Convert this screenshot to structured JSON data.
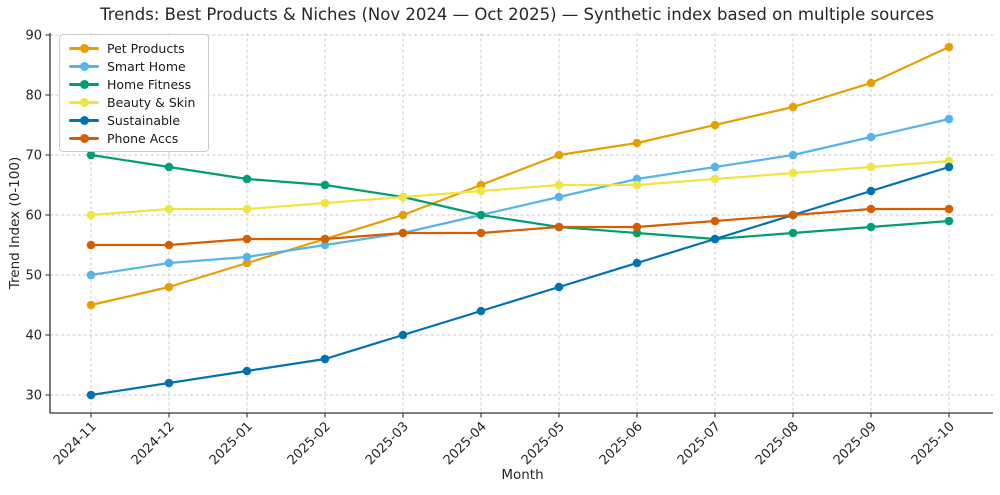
{
  "chart_data": {
    "type": "line",
    "title": "Trends: Best Products & Niches (Nov 2024 — Oct 2025) — Synthetic index based on multiple sources",
    "xlabel": "Month",
    "ylabel": "Trend Index (0-100)",
    "categories": [
      "2024-11",
      "2024-12",
      "2025-01",
      "2025-02",
      "2025-03",
      "2025-04",
      "2025-05",
      "2025-06",
      "2025-07",
      "2025-08",
      "2025-09",
      "2025-10"
    ],
    "series": [
      {
        "name": "Pet Products",
        "color": "#E69F00",
        "values": [
          45,
          48,
          52,
          56,
          60,
          65,
          70,
          72,
          75,
          78,
          82,
          88
        ]
      },
      {
        "name": "Smart Home",
        "color": "#56B4E9",
        "values": [
          50,
          52,
          53,
          55,
          57,
          60,
          63,
          66,
          68,
          70,
          73,
          76
        ]
      },
      {
        "name": "Home Fitness",
        "color": "#009E73",
        "values": [
          70,
          68,
          66,
          65,
          63,
          60,
          58,
          57,
          56,
          57,
          58,
          59
        ]
      },
      {
        "name": "Beauty & Skin",
        "color": "#F0E442",
        "values": [
          60,
          61,
          61,
          62,
          63,
          64,
          65,
          65,
          66,
          67,
          68,
          69
        ]
      },
      {
        "name": "Sustainable",
        "color": "#0072B2",
        "values": [
          30,
          32,
          34,
          36,
          40,
          44,
          48,
          52,
          56,
          60,
          64,
          68
        ]
      },
      {
        "name": "Phone Accs",
        "color": "#D55E00",
        "values": [
          55,
          55,
          56,
          56,
          57,
          57,
          58,
          58,
          59,
          60,
          61,
          61
        ]
      }
    ],
    "yticks": [
      30,
      40,
      50,
      60,
      70,
      80,
      90
    ],
    "ylim": [
      28,
      92
    ],
    "grid": true,
    "legend_position": "upper left"
  }
}
